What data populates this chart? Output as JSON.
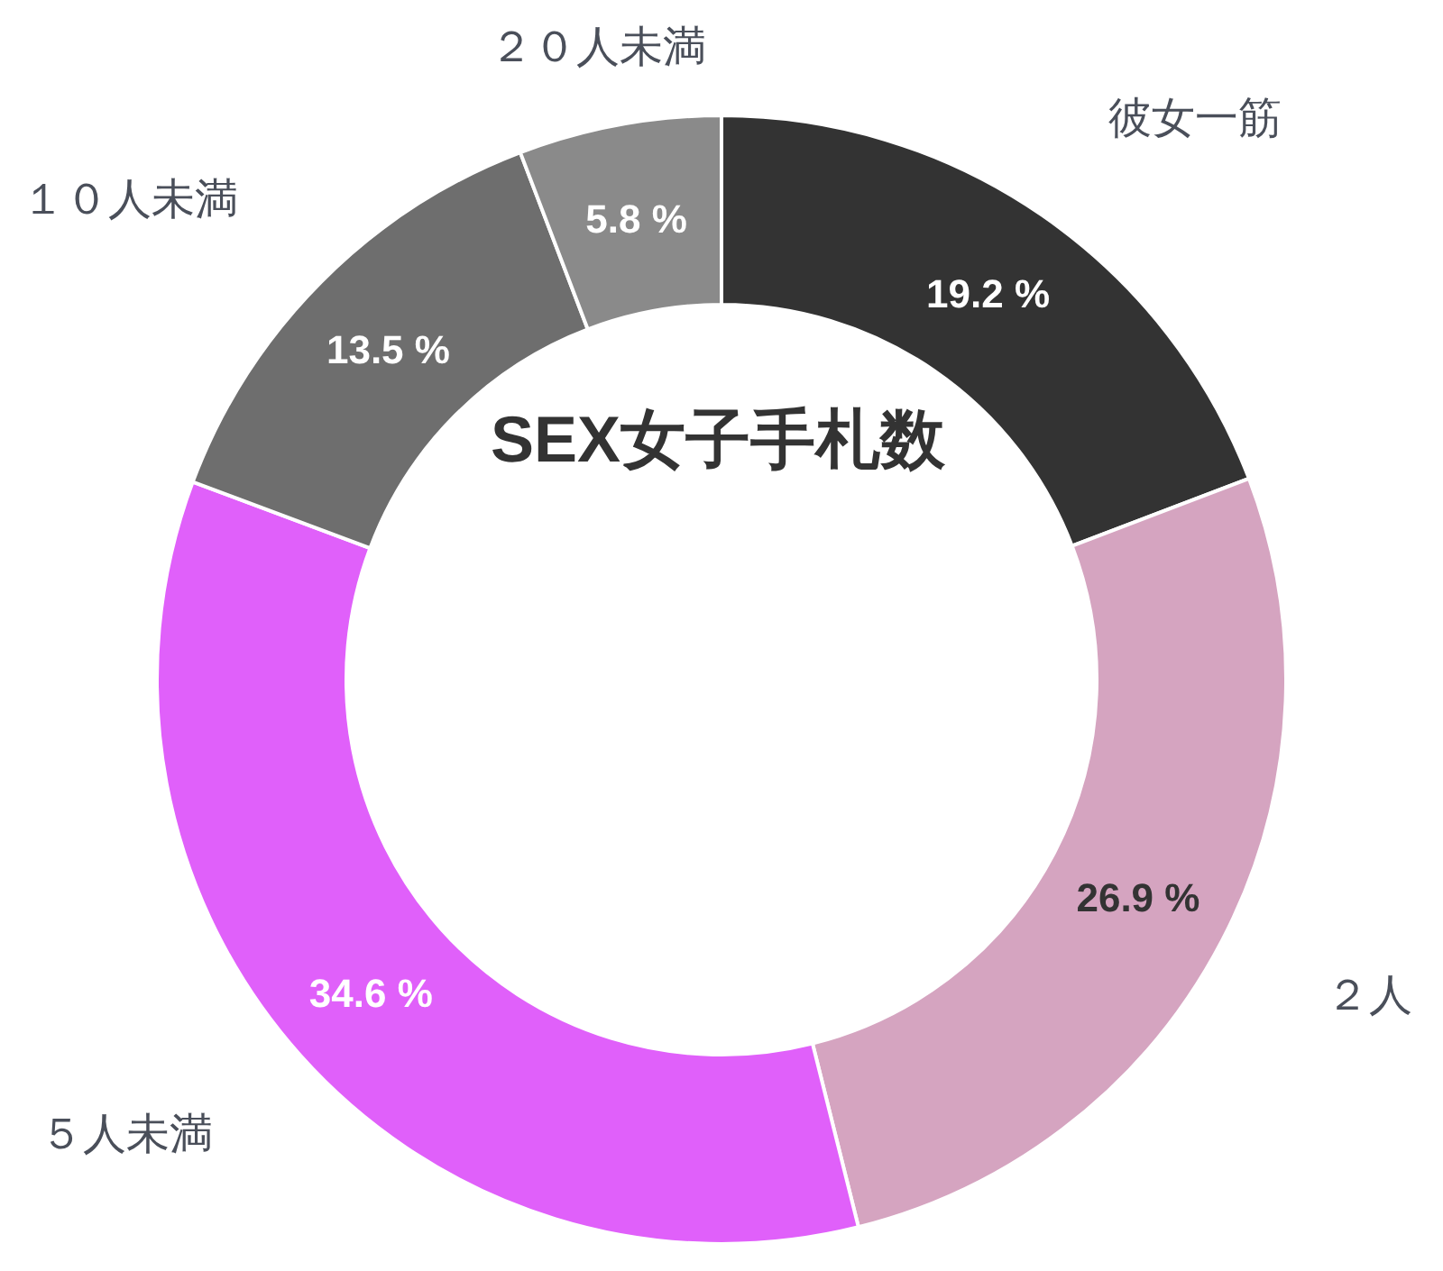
{
  "chart_data": {
    "type": "donut",
    "title": "SEX女子手札数",
    "categories": [
      "彼女一筋",
      "２人",
      "５人未満",
      "１０人未満",
      "２０人未満"
    ],
    "values": [
      19.2,
      26.9,
      34.6,
      13.5,
      5.8
    ],
    "colors": [
      "#333333",
      "#d5a4c0",
      "#e060fa",
      "#6e6e6e",
      "#8a8a8a"
    ],
    "value_labels": [
      "19.2 %",
      "26.9 %",
      "34.6 %",
      "13.5 %",
      "5.8 %"
    ]
  }
}
